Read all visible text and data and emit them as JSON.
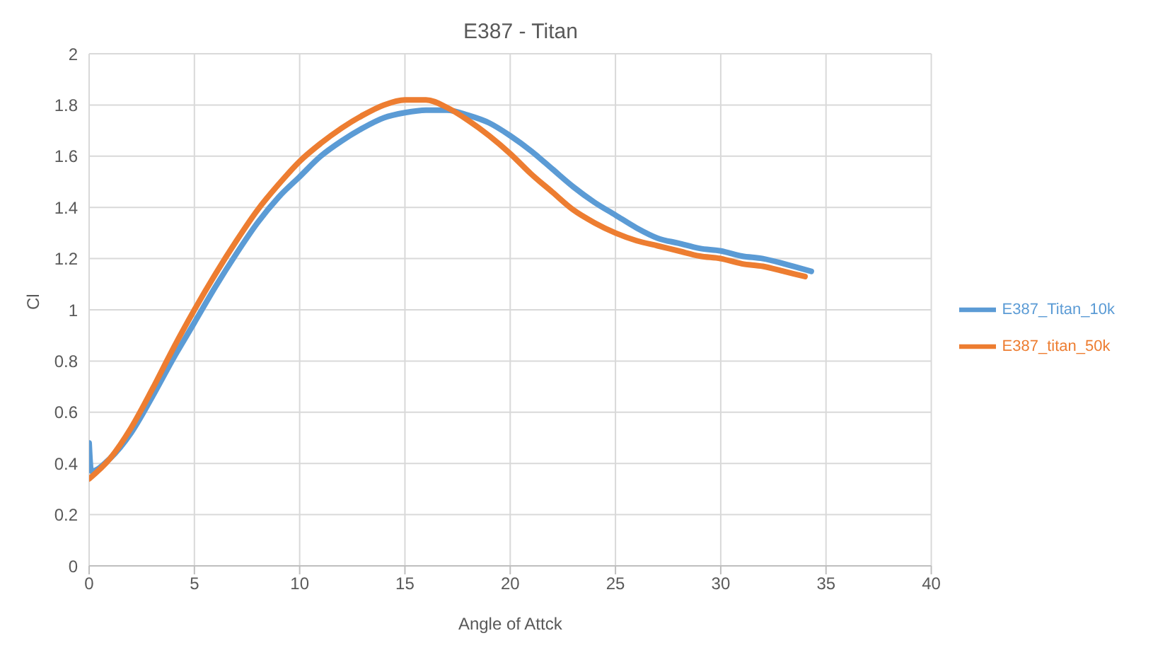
{
  "chart_data": {
    "type": "line",
    "title": "E387 - Titan",
    "xlabel": "Angle of Attck",
    "ylabel": "Cl",
    "xlim": [
      0,
      40
    ],
    "xticks": [
      0,
      5,
      10,
      15,
      20,
      25,
      30,
      35,
      40
    ],
    "ylim": [
      0,
      2
    ],
    "yticks": [
      0,
      0.2,
      0.4,
      0.6,
      0.8,
      1,
      1.2,
      1.4,
      1.6,
      1.8,
      2
    ],
    "grid": true,
    "legend": "right",
    "marker": "none",
    "series": [
      {
        "name": "E387_Titan_10k",
        "color": "#5b9bd5",
        "x": [
          0,
          0.1,
          1,
          2,
          3,
          4,
          5,
          6,
          7,
          8,
          9,
          10,
          11,
          12,
          13,
          14,
          15,
          16,
          17,
          18,
          19,
          20,
          21,
          22,
          23,
          24,
          25,
          26,
          27,
          28,
          29,
          30,
          31,
          32,
          33,
          34.3
        ],
        "values": [
          0.48,
          0.37,
          0.42,
          0.52,
          0.66,
          0.81,
          0.95,
          1.09,
          1.22,
          1.34,
          1.44,
          1.52,
          1.6,
          1.66,
          1.71,
          1.75,
          1.77,
          1.78,
          1.78,
          1.76,
          1.73,
          1.68,
          1.62,
          1.55,
          1.48,
          1.42,
          1.37,
          1.32,
          1.28,
          1.26,
          1.24,
          1.23,
          1.21,
          1.2,
          1.18,
          1.15
        ]
      },
      {
        "name": "E387_titan_50k",
        "color": "#ed7d31",
        "x": [
          0,
          1,
          2,
          3,
          4,
          5,
          6,
          7,
          8,
          9,
          10,
          11,
          12,
          13,
          14,
          15,
          16,
          17,
          18,
          19,
          20,
          21,
          22,
          23,
          24,
          25,
          26,
          27,
          28,
          29,
          30,
          31,
          32,
          33,
          34
        ],
        "values": [
          0.34,
          0.42,
          0.54,
          0.69,
          0.85,
          1.0,
          1.14,
          1.27,
          1.39,
          1.49,
          1.58,
          1.65,
          1.71,
          1.76,
          1.8,
          1.82,
          1.82,
          1.79,
          1.74,
          1.68,
          1.61,
          1.53,
          1.46,
          1.39,
          1.34,
          1.3,
          1.27,
          1.25,
          1.23,
          1.21,
          1.2,
          1.18,
          1.17,
          1.15,
          1.13
        ]
      }
    ]
  }
}
